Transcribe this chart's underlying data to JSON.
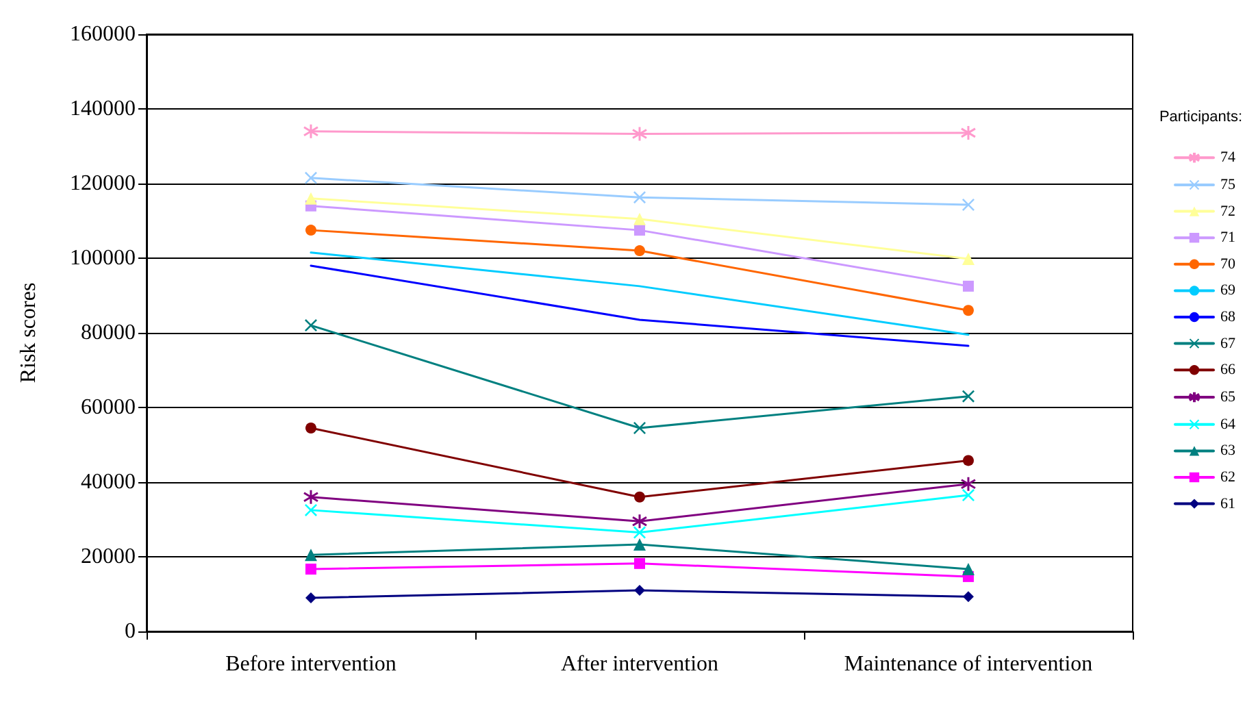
{
  "chart_data": {
    "type": "line",
    "ylabel": "Risk scores",
    "legend_title": "Participants:",
    "legend": "right",
    "grid": "y",
    "categories": [
      "Before intervention",
      "After intervention",
      "Maintenance of intervention"
    ],
    "ylim": [
      0,
      160000
    ],
    "yticks": [
      0,
      20000,
      40000,
      60000,
      80000,
      100000,
      120000,
      140000,
      160000
    ],
    "series": [
      {
        "name": "74",
        "color": "#ff99cc",
        "marker": "star",
        "values": [
          134000,
          133300,
          133600
        ]
      },
      {
        "name": "75",
        "color": "#99ccff",
        "marker": "cross",
        "values": [
          121500,
          116300,
          114300
        ]
      },
      {
        "name": "72",
        "color": "#ffff99",
        "marker": "triangle",
        "values": [
          116000,
          110500,
          99800
        ]
      },
      {
        "name": "71",
        "color": "#cc99ff",
        "marker": "square",
        "values": [
          114000,
          107500,
          92500
        ]
      },
      {
        "name": "70",
        "color": "#ff6600",
        "marker": "circle",
        "values": [
          107500,
          102000,
          86000
        ]
      },
      {
        "name": "69",
        "color": "#00ccff",
        "marker": "none",
        "values": [
          101500,
          92500,
          79500
        ]
      },
      {
        "name": "68",
        "color": "#0000ff",
        "marker": "none",
        "values": [
          98000,
          83500,
          76500
        ]
      },
      {
        "name": "67",
        "color": "#008080",
        "marker": "cross",
        "values": [
          82000,
          54500,
          63000
        ]
      },
      {
        "name": "66",
        "color": "#800000",
        "marker": "circle",
        "values": [
          54500,
          36000,
          45800
        ]
      },
      {
        "name": "65",
        "color": "#800080",
        "marker": "star",
        "values": [
          36000,
          29500,
          39500
        ]
      },
      {
        "name": "64",
        "color": "#00ffff",
        "marker": "cross",
        "values": [
          32500,
          26500,
          36500
        ]
      },
      {
        "name": "63",
        "color": "#008080",
        "marker": "triangle",
        "values": [
          20500,
          23300,
          16700
        ]
      },
      {
        "name": "62",
        "color": "#ff00ff",
        "marker": "square",
        "values": [
          16700,
          18200,
          14700
        ]
      },
      {
        "name": "61",
        "color": "#000080",
        "marker": "diamond",
        "values": [
          9000,
          11000,
          9300
        ]
      }
    ]
  }
}
